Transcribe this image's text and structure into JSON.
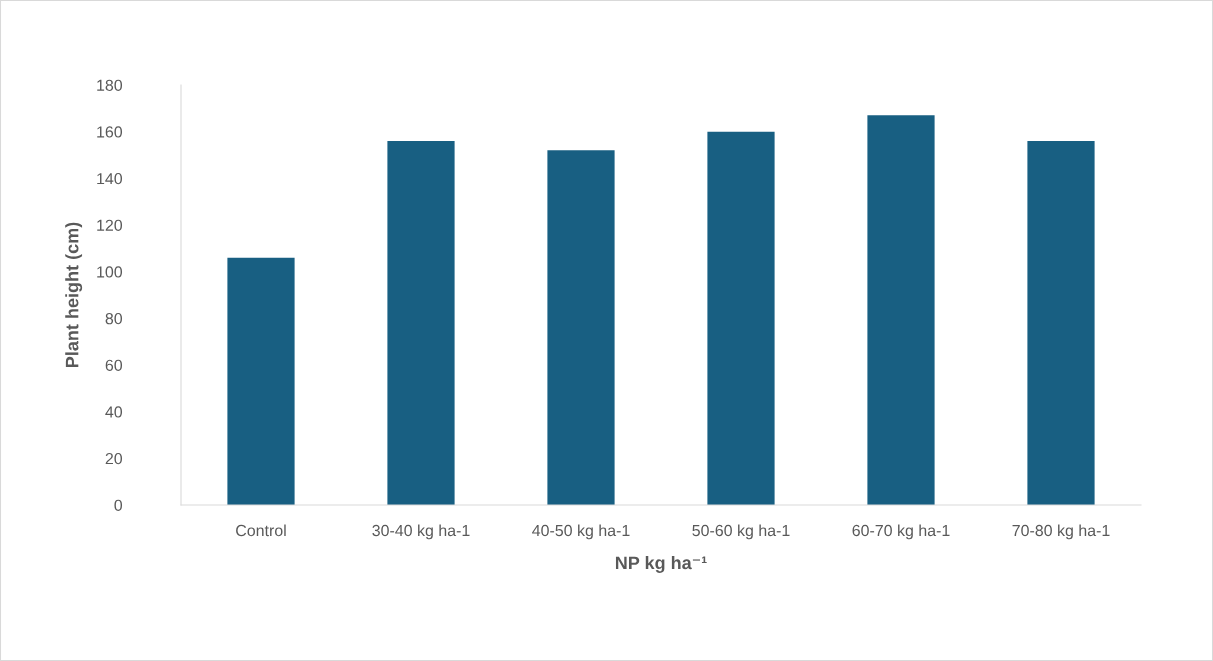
{
  "chart_data": {
    "type": "bar",
    "xlabel": "NP kg ha⁻¹",
    "ylabel": "Plant height (cm)",
    "categories": [
      "Control",
      "30-40 kg ha-1",
      "40-50 kg ha-1",
      "50-60 kg ha-1",
      "60-70 kg ha-1",
      "70-80 kg ha-1"
    ],
    "values": [
      106,
      156,
      152,
      160,
      167,
      156
    ],
    "color": "#185f82",
    "ylim": [
      0,
      180
    ],
    "yticks": [
      0,
      20,
      40,
      60,
      80,
      100,
      120,
      140,
      160,
      180
    ]
  }
}
